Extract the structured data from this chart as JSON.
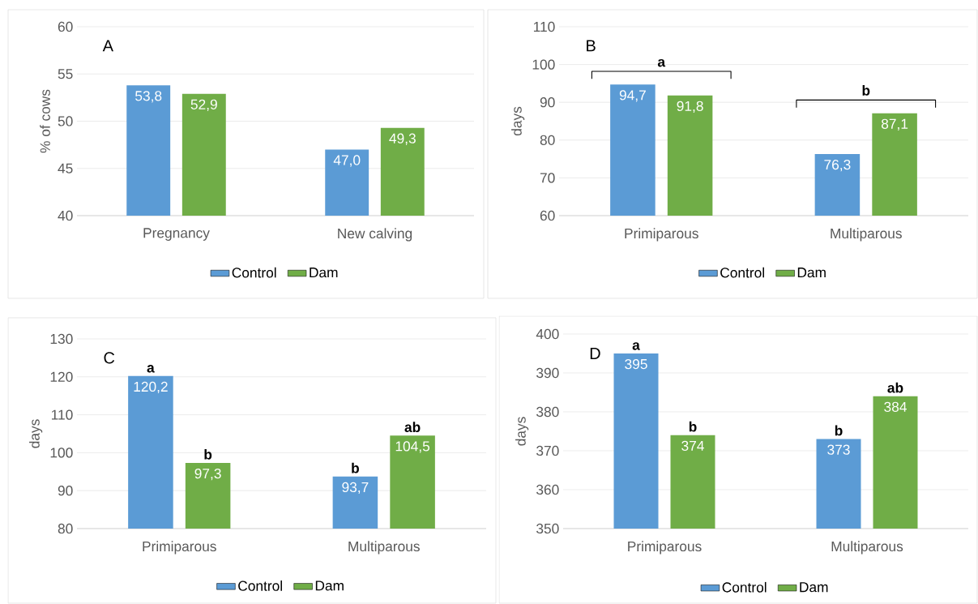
{
  "chart_data": [
    {
      "type": "bar",
      "ylabel": "% of cows",
      "categories": [
        "Pregnancy",
        "New calving"
      ],
      "series": [
        {
          "name": "Control",
          "color": "#5b9bd5",
          "values": [
            53.8,
            47.0
          ],
          "value_labels": [
            "53,8",
            "47,0"
          ]
        },
        {
          "name": "Dam",
          "color": "#70ad47",
          "values": [
            52.9,
            49.3
          ],
          "value_labels": [
            "52,9",
            "49,3"
          ]
        }
      ],
      "ylim": [
        40,
        60
      ],
      "yticks": [
        40,
        45,
        50,
        55,
        60
      ],
      "grid": "y",
      "legend": "bottom",
      "annotations": [
        "A"
      ]
    },
    {
      "type": "bar",
      "ylabel": "days",
      "categories": [
        "Primiparous",
        "Multiparous"
      ],
      "series": [
        {
          "name": "Control",
          "color": "#5b9bd5",
          "values": [
            94.7,
            76.3
          ],
          "value_labels": [
            "94,7",
            "76,3"
          ]
        },
        {
          "name": "Dam",
          "color": "#70ad47",
          "values": [
            91.8,
            87.1
          ],
          "value_labels": [
            "91,8",
            "87,1"
          ]
        }
      ],
      "ylim": [
        60,
        110
      ],
      "yticks": [
        60,
        70,
        80,
        90,
        100,
        110
      ],
      "grid": "y",
      "legend": "bottom",
      "annotations": [
        "B",
        "**a**",
        "**b**"
      ]
    },
    {
      "type": "bar",
      "ylabel": "days",
      "categories": [
        "Primiparous",
        "Multiparous"
      ],
      "series": [
        {
          "name": "Control",
          "color": "#5b9bd5",
          "values": [
            120.2,
            93.7
          ],
          "value_labels": [
            "120,2",
            "93,7"
          ]
        },
        {
          "name": "Dam",
          "color": "#70ad47",
          "values": [
            97.3,
            104.5
          ],
          "value_labels": [
            "97,3",
            "104,5"
          ]
        }
      ],
      "ylim": [
        80,
        130
      ],
      "yticks": [
        80,
        90,
        100,
        110,
        120,
        130
      ],
      "grid": "y",
      "legend": "bottom",
      "annotations": [
        "C",
        "**a**",
        "**b**",
        "**b**",
        "**ab**"
      ]
    },
    {
      "type": "bar",
      "ylabel": "days",
      "categories": [
        "Primiparous",
        "Multiparous"
      ],
      "series": [
        {
          "name": "Control",
          "color": "#5b9bd5",
          "values": [
            395,
            373
          ],
          "value_labels": [
            "395",
            "373"
          ]
        },
        {
          "name": "Dam",
          "color": "#70ad47",
          "values": [
            374,
            384
          ],
          "value_labels": [
            "374",
            "384"
          ]
        }
      ],
      "ylim": [
        350,
        400
      ],
      "yticks": [
        350,
        360,
        370,
        380,
        390,
        400
      ],
      "grid": "y",
      "legend": "bottom",
      "annotations": [
        "D",
        "**a**",
        "**b**",
        "**b**",
        "**ab**"
      ]
    }
  ]
}
